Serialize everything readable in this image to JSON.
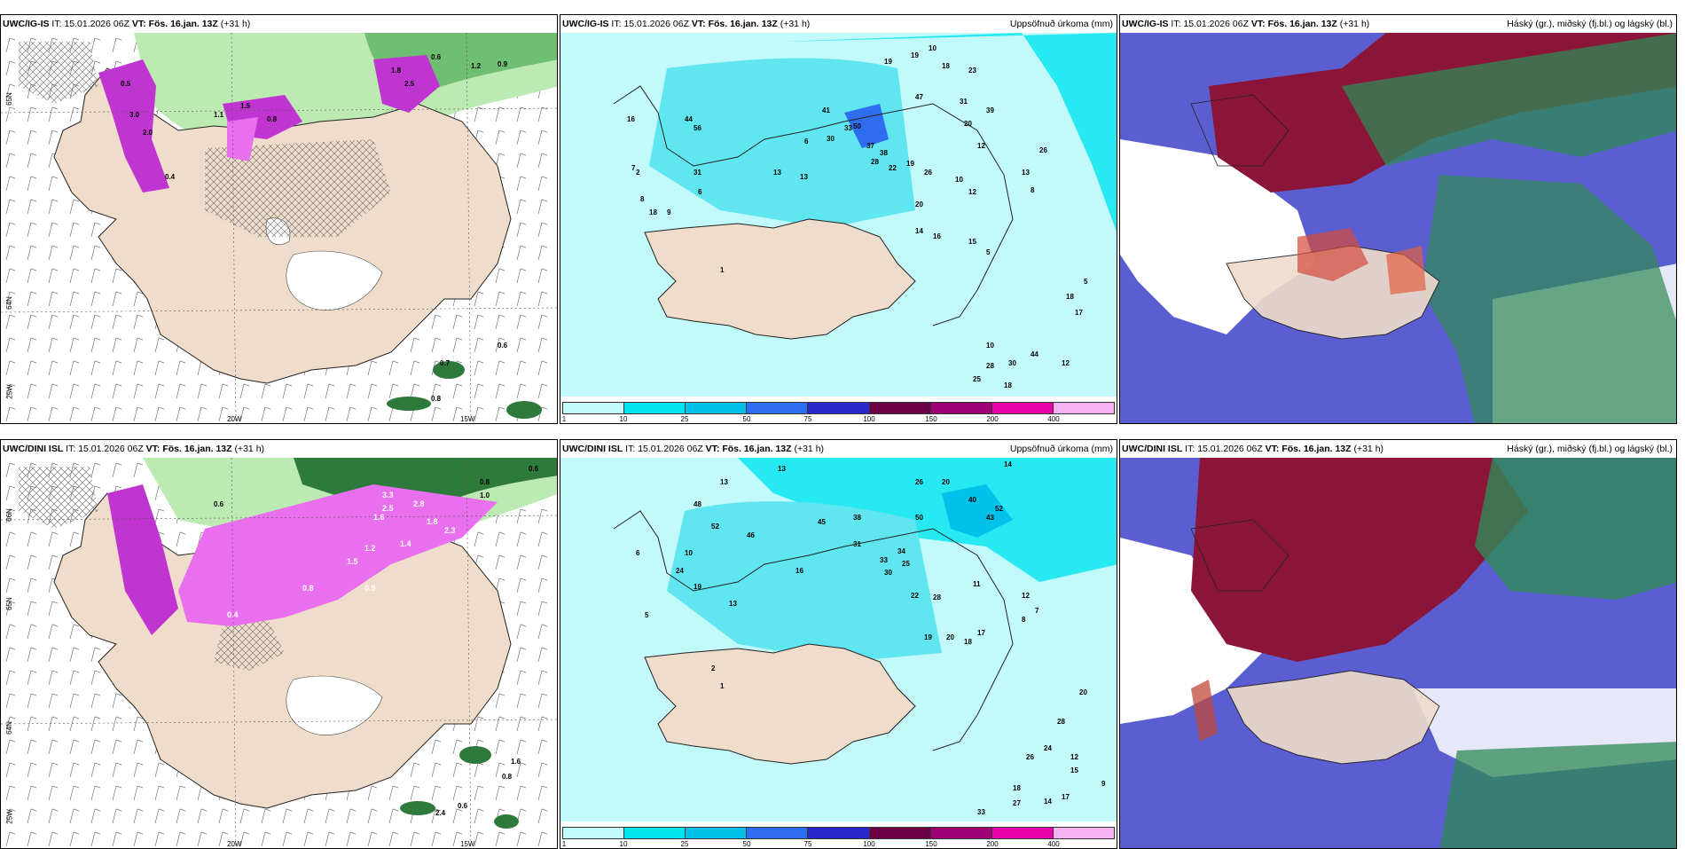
{
  "colors": {
    "land": "#efdccb",
    "sea_light": "#b6f8fb",
    "sea_cyan": "#5fe6f0",
    "precip_bins": [
      "#c2f9fb",
      "#00e5ef",
      "#00c2ea",
      "#2f6df0",
      "#2628c9",
      "#6b0047",
      "#9e0073",
      "#e800a8",
      "#f6b2f2"
    ],
    "snow_purple": "#c035d1",
    "snow_pink": "#e870ee",
    "green_light": "#bde9b2",
    "green_dark": "#2d7a3c",
    "cloud_high": "#2f8a56",
    "cloud_mid": "#8b1538",
    "cloud_low": "#5a5ed0"
  },
  "panels": {
    "p1": {
      "model": "UWC/IG-IS",
      "it_label": "IT:",
      "it_value": "15.01.2026 06Z",
      "vt_label": "VT:",
      "vt_value": "Fös. 16.jan. 13Z",
      "lead": "(+31 h)",
      "right_title": "",
      "lat_labels": [
        "65N",
        "64N",
        "25W"
      ],
      "lon_labels": [
        "20W",
        "15W"
      ],
      "snow_values": [
        "0.5",
        "3.0",
        "2.0",
        "1.5",
        "0.8",
        "1.8",
        "0.6",
        "1.2",
        "0.9",
        "2.5",
        "1.1",
        "0.4",
        "0.7",
        "0.6",
        "0.8"
      ]
    },
    "p2": {
      "model": "UWC/IG-IS",
      "it_label": "IT:",
      "it_value": "15.01.2026 06Z",
      "vt_label": "VT:",
      "vt_value": "Fös. 16.jan. 13Z",
      "lead": "(+31 h)",
      "right_title": "Uppsöfnuð úrkoma (mm)",
      "colorbar_ticks": [
        "1",
        "10",
        "25",
        "50",
        "75",
        "100",
        "150",
        "200",
        "400"
      ],
      "station_values": [
        "10",
        "19",
        "19",
        "18",
        "23",
        "31",
        "39",
        "47",
        "20",
        "12",
        "26",
        "33",
        "44",
        "56",
        "41",
        "30",
        "37",
        "13",
        "50",
        "38",
        "28",
        "22",
        "19",
        "26",
        "13",
        "12",
        "8",
        "31",
        "6",
        "18",
        "16",
        "20",
        "15",
        "14",
        "10",
        "16",
        "13",
        "5",
        "6",
        "7",
        "8",
        "9",
        "2",
        "1",
        "18",
        "17",
        "5",
        "10",
        "28",
        "30",
        "44",
        "18",
        "25",
        "12"
      ]
    },
    "p3": {
      "model": "UWC/IG-IS",
      "it_label": "IT:",
      "it_value": "15.01.2026 06Z",
      "vt_label": "VT:",
      "vt_value": "Fös. 16.jan. 13Z",
      "lead": "(+31 h)",
      "right_title": "Háský (gr.), miðský (fj.bl.) og lágský (bl.)"
    },
    "p4": {
      "model": "UWC/DINI ISL",
      "it_label": "IT:",
      "it_value": "15.01.2026 06Z",
      "vt_label": "VT:",
      "vt_value": "Fös. 16.jan. 13Z",
      "lead": "(+31 h)",
      "right_title": "",
      "lat_labels": [
        "66N",
        "65N",
        "64N",
        "25W"
      ],
      "lon_labels": [
        "20W",
        "15W"
      ],
      "snow_values": [
        "0.8",
        "1.0",
        "0.6",
        "3.3",
        "2.8",
        "1.6",
        "1.8",
        "2.5",
        "2.3",
        "1.4",
        "1.2",
        "1.5",
        "0.9",
        "0.8",
        "0.6",
        "0.4",
        "1.6",
        "0.8",
        "0.6",
        "2.4"
      ]
    },
    "p5": {
      "model": "UWC/DINI ISL",
      "it_label": "IT:",
      "it_value": "15.01.2026 06Z",
      "vt_label": "VT:",
      "vt_value": "Fös. 16.jan. 13Z",
      "lead": "(+31 h)",
      "right_title": "Uppsöfnuð úrkoma (mm)",
      "colorbar_ticks": [
        "1",
        "10",
        "25",
        "50",
        "75",
        "100",
        "150",
        "200",
        "400"
      ],
      "station_values": [
        "13",
        "13",
        "14",
        "20",
        "40",
        "52",
        "43",
        "26",
        "45",
        "50",
        "38",
        "31",
        "33",
        "34",
        "25",
        "30",
        "22",
        "28",
        "19",
        "20",
        "18",
        "17",
        "12",
        "11",
        "7",
        "8",
        "10",
        "24",
        "19",
        "52",
        "48",
        "46",
        "16",
        "13",
        "5",
        "6",
        "2",
        "1",
        "28",
        "26",
        "24",
        "18",
        "15",
        "27",
        "33",
        "12",
        "20",
        "9",
        "17",
        "14"
      ]
    },
    "p6": {
      "model": "UWC/DINI ISL",
      "it_label": "IT:",
      "it_value": "15.01.2026 06Z",
      "vt_label": "VT:",
      "vt_value": "Fös. 16.jan. 13Z",
      "lead": "(+31 h)",
      "right_title": "Háský (gr.), miðský (fj.bl.) og lágský (bl.)"
    }
  }
}
